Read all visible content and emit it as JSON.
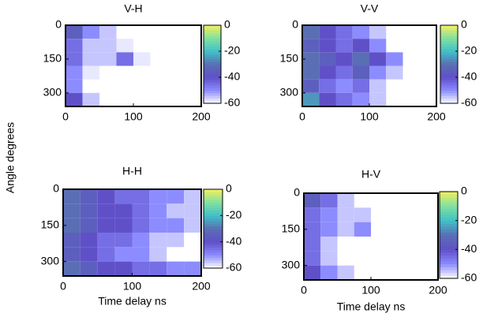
{
  "figure": {
    "ylabel": "Angle degrees"
  },
  "chart_data": [
    {
      "type": "heatmap",
      "title": "V-H",
      "xlim": [
        0,
        200
      ],
      "xticks": [
        0,
        100,
        200
      ],
      "ylim": [
        0,
        360
      ],
      "yticks": [
        0,
        150,
        300
      ],
      "y_reversed": true,
      "xbins": [
        0,
        25,
        50,
        75,
        100,
        125,
        150,
        175,
        200
      ],
      "ybins": [
        0,
        60,
        120,
        180,
        240,
        300,
        360
      ],
      "clim": [
        -60,
        0
      ],
      "cticks": [
        0,
        -20,
        -40,
        -60
      ],
      "colormap": [
        "#ffffff",
        "#8c8cff",
        "#6050c8",
        "#5a6eb4",
        "#40c0c8",
        "#80e0a0",
        "#f0f060"
      ],
      "values": [
        [
          -35,
          -50,
          -55,
          null,
          null,
          null,
          null,
          null
        ],
        [
          -45,
          -55,
          -55,
          -58,
          null,
          null,
          null,
          null
        ],
        [
          -45,
          -55,
          -55,
          -45,
          -58,
          null,
          null,
          null
        ],
        [
          -50,
          -58,
          null,
          null,
          null,
          null,
          null,
          null
        ],
        [
          -50,
          null,
          null,
          null,
          null,
          null,
          null,
          null
        ],
        [
          -40,
          -55,
          null,
          null,
          null,
          null,
          null,
          null
        ]
      ]
    },
    {
      "type": "heatmap",
      "title": "V-V",
      "xlim": [
        0,
        200
      ],
      "xticks": [
        0,
        100,
        200
      ],
      "ylim": [
        0,
        360
      ],
      "yticks": [
        0,
        150,
        300
      ],
      "y_reversed": true,
      "xbins": [
        0,
        25,
        50,
        75,
        100,
        125,
        150,
        175,
        200
      ],
      "ybins": [
        0,
        60,
        120,
        180,
        240,
        300,
        360
      ],
      "clim": [
        -60,
        0
      ],
      "cticks": [
        0,
        -20,
        -40,
        -60
      ],
      "colormap": [
        "#ffffff",
        "#8c8cff",
        "#6050c8",
        "#5a6eb4",
        "#40c0c8",
        "#80e0a0",
        "#f0f060"
      ],
      "values": [
        [
          -30,
          -40,
          -45,
          -50,
          -55,
          null,
          null,
          null
        ],
        [
          -35,
          -40,
          -45,
          -40,
          -50,
          null,
          null,
          null
        ],
        [
          -30,
          -35,
          -40,
          -30,
          -40,
          -50,
          null,
          null
        ],
        [
          -30,
          -40,
          -45,
          -35,
          -50,
          -55,
          null,
          null
        ],
        [
          -35,
          -45,
          -50,
          -45,
          -55,
          null,
          null,
          null
        ],
        [
          -25,
          -40,
          -45,
          -50,
          -55,
          null,
          null,
          null
        ]
      ]
    },
    {
      "type": "heatmap",
      "title": "H-H",
      "xlabel": "Time delay ns",
      "xlim": [
        0,
        200
      ],
      "xticks": [
        0,
        100,
        200
      ],
      "ylim": [
        0,
        360
      ],
      "yticks": [
        0,
        150,
        300
      ],
      "y_reversed": true,
      "xbins": [
        0,
        25,
        50,
        75,
        100,
        125,
        150,
        175,
        200
      ],
      "ybins": [
        0,
        60,
        120,
        180,
        240,
        300,
        360
      ],
      "clim": [
        -60,
        0
      ],
      "cticks": [
        0,
        -20,
        -40,
        -60
      ],
      "colormap": [
        "#ffffff",
        "#8c8cff",
        "#6050c8",
        "#5a6eb4",
        "#40c0c8",
        "#80e0a0",
        "#f0f060"
      ],
      "values": [
        [
          -30,
          -35,
          -40,
          -45,
          -45,
          -50,
          -50,
          -55
        ],
        [
          -30,
          -35,
          -40,
          -40,
          -45,
          -50,
          -55,
          -55
        ],
        [
          -30,
          -35,
          -40,
          -40,
          -45,
          -50,
          -50,
          -55
        ],
        [
          -35,
          -40,
          -45,
          -45,
          -50,
          -55,
          -55,
          null
        ],
        [
          -35,
          -40,
          -45,
          -50,
          -50,
          -55,
          null,
          null
        ],
        [
          -30,
          -35,
          -40,
          -40,
          -45,
          -45,
          -50,
          -50
        ]
      ]
    },
    {
      "type": "heatmap",
      "title": "H-V",
      "xlabel": "Time delay ns",
      "xlim": [
        0,
        200
      ],
      "xticks": [
        0,
        100,
        200
      ],
      "ylim": [
        0,
        360
      ],
      "yticks": [
        0,
        150,
        300
      ],
      "y_reversed": true,
      "xbins": [
        0,
        25,
        50,
        75,
        100,
        125,
        150,
        175,
        200
      ],
      "ybins": [
        0,
        60,
        120,
        180,
        240,
        300,
        360
      ],
      "clim": [
        -60,
        0
      ],
      "cticks": [
        0,
        -20,
        -40,
        -60
      ],
      "colormap": [
        "#ffffff",
        "#8c8cff",
        "#6050c8",
        "#5a6eb4",
        "#40c0c8",
        "#80e0a0",
        "#f0f060"
      ],
      "values": [
        [
          -35,
          -45,
          -55,
          null,
          null,
          null,
          null,
          null
        ],
        [
          -45,
          -50,
          -55,
          -55,
          null,
          null,
          null,
          null
        ],
        [
          -45,
          -50,
          -55,
          -50,
          null,
          null,
          null,
          null
        ],
        [
          -45,
          -55,
          null,
          null,
          null,
          null,
          null,
          null
        ],
        [
          -45,
          -55,
          null,
          null,
          null,
          null,
          null,
          null
        ],
        [
          -40,
          -50,
          -55,
          null,
          null,
          null,
          null,
          null
        ]
      ]
    }
  ]
}
